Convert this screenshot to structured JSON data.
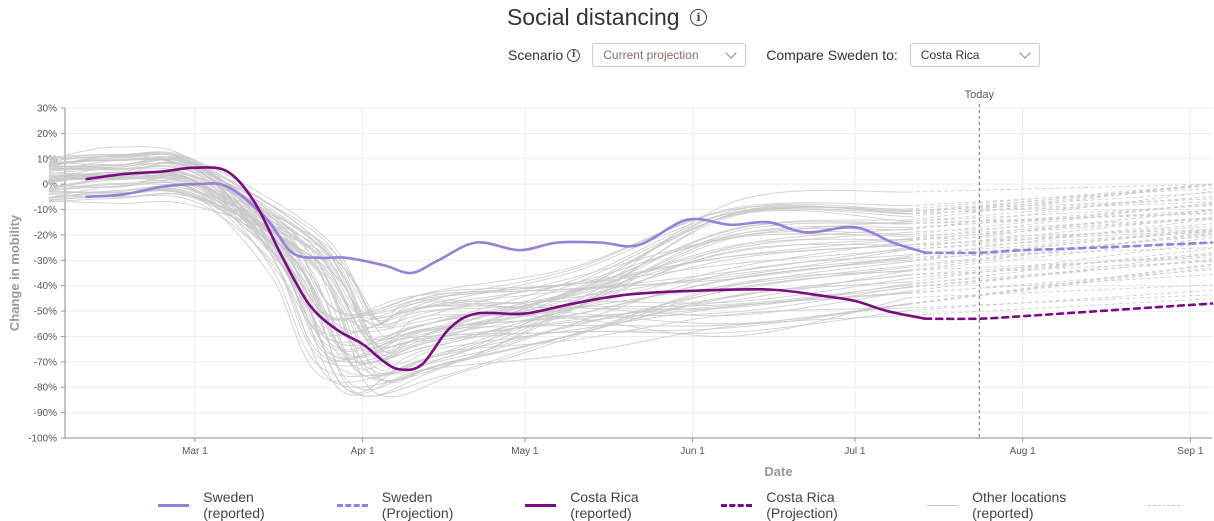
{
  "header": {
    "title": "Social distancing",
    "title_icon": "info-icon"
  },
  "controls": {
    "scenario_label": "Scenario",
    "scenario_value": "Current projection",
    "compare_label": "Compare Sweden to:",
    "compare_value": "Costa Rica"
  },
  "colors": {
    "sweden": "#9a7fd8",
    "costa_rica": "#7a0b80",
    "other": "#c4c4c4",
    "today": "#888888"
  },
  "chart_data": {
    "type": "line",
    "xlabel": "Date",
    "ylabel": "Change in mobility",
    "x_range": [
      "2020-02-06",
      "2020-09-05"
    ],
    "ylim": [
      -100,
      30
    ],
    "y_ticks": [
      30,
      20,
      10,
      0,
      -10,
      -20,
      -30,
      -40,
      -50,
      -60,
      -70,
      -80,
      -90,
      -100
    ],
    "y_tick_labels": [
      "30%",
      "20%",
      "10%",
      "0%",
      "-10%",
      "-20%",
      "-30%",
      "-40%",
      "-50%",
      "-60%",
      "-70%",
      "-80%",
      "-90%",
      "-100%"
    ],
    "x_ticks": [
      "2020-03-01",
      "2020-04-01",
      "2020-05-01",
      "2020-06-01",
      "2020-07-01",
      "2020-08-01",
      "2020-09-01"
    ],
    "x_tick_labels": [
      "Mar 1",
      "Apr 1",
      "May 1",
      "Jun 1",
      "Jul 1",
      "Aug 1",
      "Sep 1"
    ],
    "today": {
      "label": "Today",
      "date": "2020-07-24"
    },
    "grid": true,
    "legend_position": "bottom",
    "series": [
      {
        "name": "Sweden (reported)",
        "style": "solid",
        "color": "#9a7fd8",
        "points": [
          [
            "2020-02-10",
            -5
          ],
          [
            "2020-02-17",
            -4
          ],
          [
            "2020-02-24",
            -1
          ],
          [
            "2020-03-01",
            0
          ],
          [
            "2020-03-07",
            -1
          ],
          [
            "2020-03-14",
            -13
          ],
          [
            "2020-03-19",
            -27
          ],
          [
            "2020-03-24",
            -29
          ],
          [
            "2020-03-29",
            -29
          ],
          [
            "2020-04-05",
            -32
          ],
          [
            "2020-04-10",
            -35
          ],
          [
            "2020-04-15",
            -30
          ],
          [
            "2020-04-22",
            -23
          ],
          [
            "2020-04-30",
            -26
          ],
          [
            "2020-05-07",
            -23
          ],
          [
            "2020-05-15",
            -23
          ],
          [
            "2020-05-22",
            -24
          ],
          [
            "2020-05-31",
            -14
          ],
          [
            "2020-06-08",
            -16
          ],
          [
            "2020-06-15",
            -15
          ],
          [
            "2020-06-22",
            -19
          ],
          [
            "2020-07-01",
            -17
          ],
          [
            "2020-07-08",
            -23
          ],
          [
            "2020-07-14",
            -27
          ]
        ]
      },
      {
        "name": "Sweden (Projection)",
        "style": "dashed",
        "color": "#9a7fd8",
        "points": [
          [
            "2020-07-14",
            -27
          ],
          [
            "2020-07-24",
            -27
          ],
          [
            "2020-08-01",
            -26
          ],
          [
            "2020-08-15",
            -25
          ],
          [
            "2020-09-05",
            -23
          ]
        ]
      },
      {
        "name": "Costa Rica (reported)",
        "style": "solid",
        "color": "#7a0b80",
        "points": [
          [
            "2020-02-10",
            2
          ],
          [
            "2020-02-17",
            4
          ],
          [
            "2020-02-24",
            5
          ],
          [
            "2020-03-01",
            6.5
          ],
          [
            "2020-03-07",
            5
          ],
          [
            "2020-03-12",
            -7
          ],
          [
            "2020-03-17",
            -28
          ],
          [
            "2020-03-22",
            -47
          ],
          [
            "2020-03-27",
            -57
          ],
          [
            "2020-04-01",
            -63
          ],
          [
            "2020-04-05",
            -70
          ],
          [
            "2020-04-08",
            -73
          ],
          [
            "2020-04-12",
            -71
          ],
          [
            "2020-04-17",
            -57
          ],
          [
            "2020-04-22",
            -51
          ],
          [
            "2020-05-01",
            -51
          ],
          [
            "2020-05-10",
            -47
          ],
          [
            "2020-05-20",
            -43.5
          ],
          [
            "2020-06-01",
            -42
          ],
          [
            "2020-06-15",
            -41.5
          ],
          [
            "2020-06-25",
            -44
          ],
          [
            "2020-07-01",
            -46
          ],
          [
            "2020-07-07",
            -50
          ],
          [
            "2020-07-14",
            -53
          ]
        ]
      },
      {
        "name": "Costa Rica (Projection)",
        "style": "dashed",
        "color": "#7a0b80",
        "points": [
          [
            "2020-07-14",
            -53
          ],
          [
            "2020-07-24",
            -53
          ],
          [
            "2020-08-01",
            -52
          ],
          [
            "2020-08-15",
            -50
          ],
          [
            "2020-09-05",
            -47
          ]
        ]
      }
    ],
    "other_locations_legend": "Other locations (reported)",
    "other_locations_projection_legend": "",
    "other_locations_count": 60
  }
}
